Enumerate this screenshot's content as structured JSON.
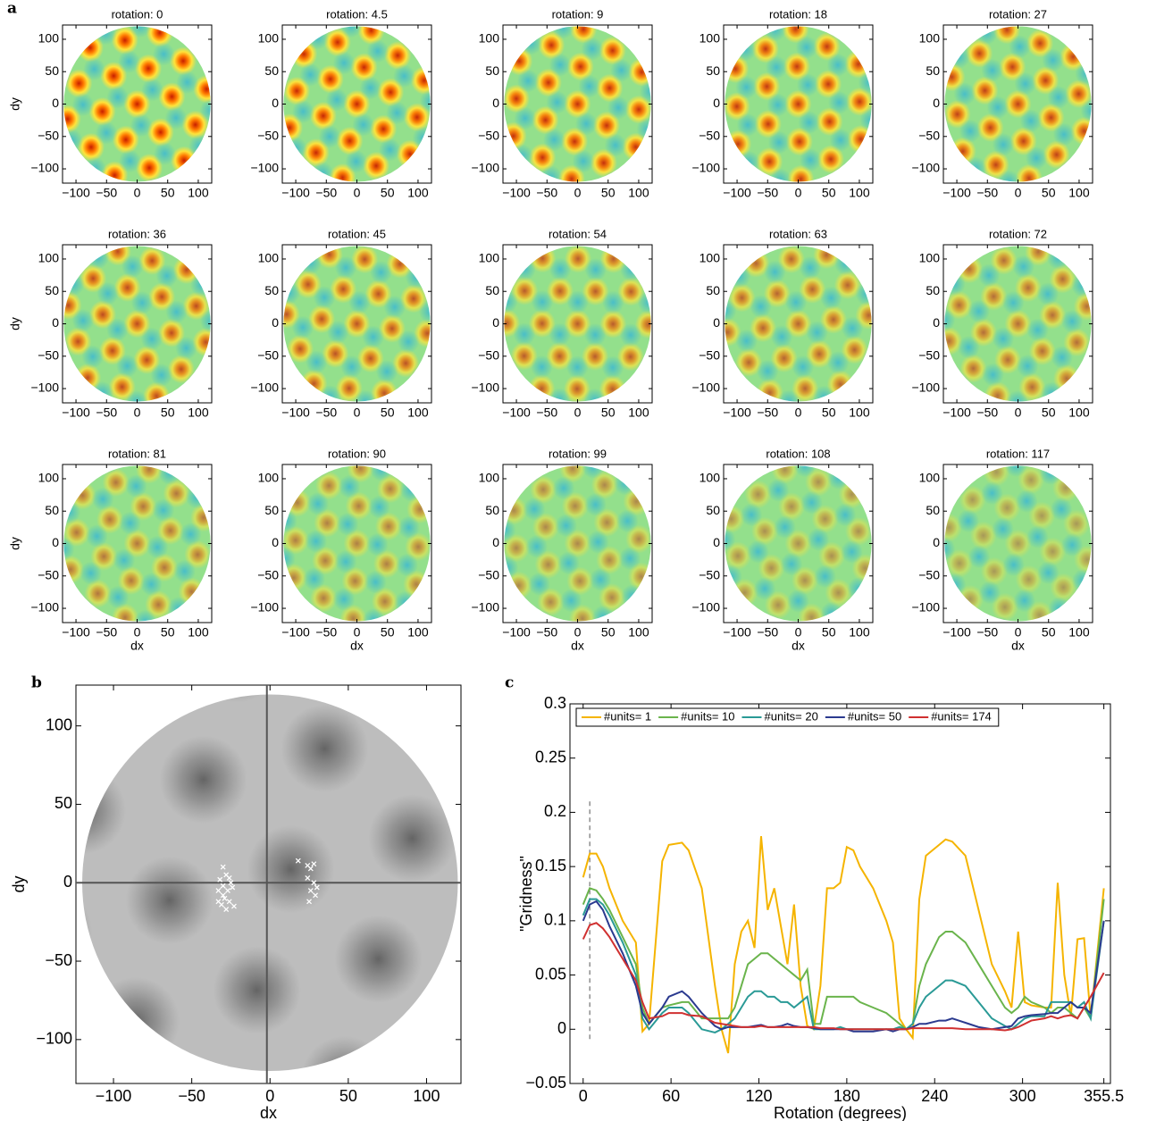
{
  "chart_data": [
    {
      "type": "heatmap-grid",
      "panel_label": "a",
      "titles": [
        "rotation: 0",
        "rotation: 4.5",
        "rotation: 9",
        "rotation: 18",
        "rotation: 27",
        "rotation: 36",
        "rotation: 45",
        "rotation: 54",
        "rotation: 63",
        "rotation: 72",
        "rotation: 81",
        "rotation: 90",
        "rotation: 99",
        "rotation: 108",
        "rotation: 117"
      ],
      "xlabel": "dx",
      "ylabel": "dy",
      "xlim": [
        -122,
        122
      ],
      "ylim": [
        -122,
        122
      ],
      "xticks": [
        {
          "value": -100,
          "label": "−100"
        },
        {
          "value": -50,
          "label": "−50"
        },
        0,
        50,
        100
      ],
      "yticks": [
        100,
        50,
        0,
        {
          "value": -50,
          "label": "−50"
        },
        {
          "value": -100,
          "label": "−100"
        }
      ]
    },
    {
      "type": "scatter",
      "panel_label": "b",
      "xlabel": "dx",
      "ylabel": "dy",
      "xlim": [
        -124,
        122
      ],
      "ylim": [
        -128,
        126
      ],
      "xticks": [
        {
          "value": -100,
          "label": "−100"
        },
        {
          "value": -50,
          "label": "−50"
        },
        0,
        50,
        100
      ],
      "yticks": [
        100,
        50,
        0,
        {
          "value": -50,
          "label": "−50"
        },
        {
          "value": -100,
          "label": "−100"
        }
      ],
      "crosshair": [
        -2,
        0
      ],
      "color": "#ffffff",
      "x": [
        -30,
        -28,
        -32,
        -26,
        -30,
        -27,
        -33,
        -24,
        -29,
        -31,
        -26,
        -23,
        -28,
        -33,
        -25,
        -30,
        18,
        24,
        28,
        26,
        24,
        28,
        30,
        26,
        29,
        25
      ],
      "y": [
        10,
        5,
        2,
        3,
        -2,
        -5,
        -5,
        -3,
        -10,
        -14,
        -12,
        -15,
        -17,
        -12,
        0,
        -8,
        14,
        11,
        12,
        9,
        3,
        0,
        -3,
        -5,
        -8,
        -12
      ]
    },
    {
      "type": "line",
      "panel_label": "c",
      "xlabel": "Rotation (degrees)",
      "ylabel": "\"Gridness\"",
      "xlim": [
        -9,
        360
      ],
      "ylim": [
        -0.05,
        0.3
      ],
      "xticks": [
        0,
        60,
        120,
        180,
        240,
        300,
        355.5
      ],
      "yticks": [
        {
          "value": -0.05,
          "label": "−0.05"
        },
        0,
        0.05,
        0.1,
        0.15,
        0.2,
        0.25,
        0.3
      ],
      "vline_x": 4.5,
      "legend": "top",
      "x": [
        0,
        4.5,
        9,
        13.5,
        18,
        27,
        36,
        40.5,
        45,
        54,
        58.5,
        67.5,
        72,
        81,
        90,
        94.5,
        99,
        103.5,
        108,
        112.5,
        117,
        121.5,
        126,
        130.5,
        135,
        139.5,
        144,
        148.5,
        153,
        157.5,
        162,
        166.5,
        171,
        175.5,
        180,
        184.5,
        189,
        198,
        207,
        211.5,
        216,
        220.5,
        225,
        229.5,
        234,
        243,
        247.5,
        252,
        261,
        270,
        279,
        288,
        292.5,
        297,
        301.5,
        306,
        315,
        319.5,
        324,
        328.5,
        333,
        337.5,
        342,
        346.5,
        355.5
      ],
      "series": [
        {
          "name": "#units= 1",
          "color": "#f5b400",
          "values": [
            0.14,
            0.162,
            0.162,
            0.15,
            0.13,
            0.1,
            0.08,
            -0.002,
            0.005,
            0.155,
            0.17,
            0.172,
            0.165,
            0.13,
            0.04,
            0,
            -0.022,
            0.06,
            0.09,
            0.1,
            0.075,
            0.178,
            0.11,
            0.13,
            0.095,
            0.06,
            0.115,
            0.04,
            0.003,
            0,
            0.04,
            0.13,
            0.13,
            0.135,
            0.168,
            0.165,
            0.15,
            0.13,
            0.1,
            0.08,
            0.01,
            0,
            -0.008,
            0.12,
            0.16,
            0.17,
            0.175,
            0.173,
            0.16,
            0.11,
            0.06,
            0.035,
            0.02,
            0.09,
            0.025,
            0.022,
            0.02,
            0.02,
            0.135,
            0.05,
            0.012,
            0.083,
            0.084,
            0.01,
            0.13
          ]
        },
        {
          "name": "#units= 10",
          "color": "#6ab44c",
          "values": [
            0.115,
            0.13,
            0.128,
            0.12,
            0.11,
            0.085,
            0.06,
            0.02,
            0.005,
            0.02,
            0.022,
            0.025,
            0.025,
            0.01,
            0.01,
            0.01,
            0.01,
            0.02,
            0.04,
            0.06,
            0.065,
            0.07,
            0.07,
            0.065,
            0.06,
            0.055,
            0.05,
            0.045,
            0.055,
            0.005,
            0.005,
            0.03,
            0.03,
            0.03,
            0.03,
            0.03,
            0.025,
            0.02,
            0.015,
            0.01,
            0.005,
            0,
            0.005,
            0.04,
            0.06,
            0.085,
            0.09,
            0.09,
            0.08,
            0.06,
            0.04,
            0.02,
            0.015,
            0.02,
            0.03,
            0.025,
            0.02,
            0.015,
            0.02,
            0.02,
            0.015,
            0.01,
            0.02,
            0.01,
            0.12
          ]
        },
        {
          "name": "#units= 20",
          "color": "#2a9a96",
          "values": [
            0.105,
            0.12,
            0.12,
            0.115,
            0.105,
            0.08,
            0.05,
            0.01,
            0,
            0.015,
            0.02,
            0.02,
            0.015,
            0,
            -0.003,
            0,
            0.005,
            0.01,
            0.02,
            0.03,
            0.035,
            0.035,
            0.03,
            0.03,
            0.025,
            0.025,
            0.02,
            0.025,
            0.03,
            0,
            0,
            0,
            0,
            0.002,
            0,
            0,
            0,
            0,
            0,
            0,
            0.002,
            0,
            0.005,
            0.02,
            0.03,
            0.04,
            0.045,
            0.045,
            0.04,
            0.025,
            0.01,
            0.003,
            0,
            0.005,
            0.01,
            0.012,
            0.012,
            0.025,
            0.025,
            0.025,
            0.025,
            0.02,
            0.025,
            0.01,
            0.1
          ]
        },
        {
          "name": "#units= 50",
          "color": "#2b3a8f",
          "values": [
            0.1,
            0.115,
            0.118,
            0.11,
            0.095,
            0.07,
            0.04,
            0.015,
            0.005,
            0.02,
            0.03,
            0.035,
            0.03,
            0.015,
            0.003,
            0,
            0.002,
            0.002,
            0.002,
            0.002,
            0.003,
            0.004,
            0.002,
            0.002,
            0.003,
            0.005,
            0.003,
            0.002,
            0.002,
            0.001,
            0,
            0,
            0,
            0,
            0,
            -0.002,
            -0.002,
            -0.002,
            0,
            -0.002,
            0,
            0,
            0.002,
            0.005,
            0.005,
            0.008,
            0.008,
            0.01,
            0.006,
            0.002,
            0,
            0.002,
            0.003,
            0.01,
            0.012,
            0.013,
            0.014,
            0.015,
            0.015,
            0.02,
            0.025,
            0.02,
            0.02,
            0.015,
            0.1
          ]
        },
        {
          "name": "#units= 174",
          "color": "#d03030",
          "values": [
            0.083,
            0.096,
            0.098,
            0.093,
            0.085,
            0.065,
            0.045,
            0.025,
            0.01,
            0.012,
            0.015,
            0.015,
            0.013,
            0.012,
            0.006,
            0.005,
            0.004,
            0.003,
            0.002,
            0.002,
            0.002,
            0.003,
            0.002,
            0.002,
            0.002,
            0.002,
            0.002,
            0.002,
            0.002,
            0.002,
            0.001,
            0.001,
            0.001,
            0,
            0,
            0,
            0,
            0,
            0,
            0,
            0,
            0,
            0.001,
            0.001,
            0.001,
            0.001,
            0.001,
            0.001,
            0,
            0,
            0,
            -0.001,
            0,
            0.002,
            0.005,
            0.008,
            0.01,
            0.012,
            0.01,
            0.012,
            0.013,
            0.01,
            0.02,
            0.03,
            0.052
          ]
        }
      ]
    }
  ]
}
